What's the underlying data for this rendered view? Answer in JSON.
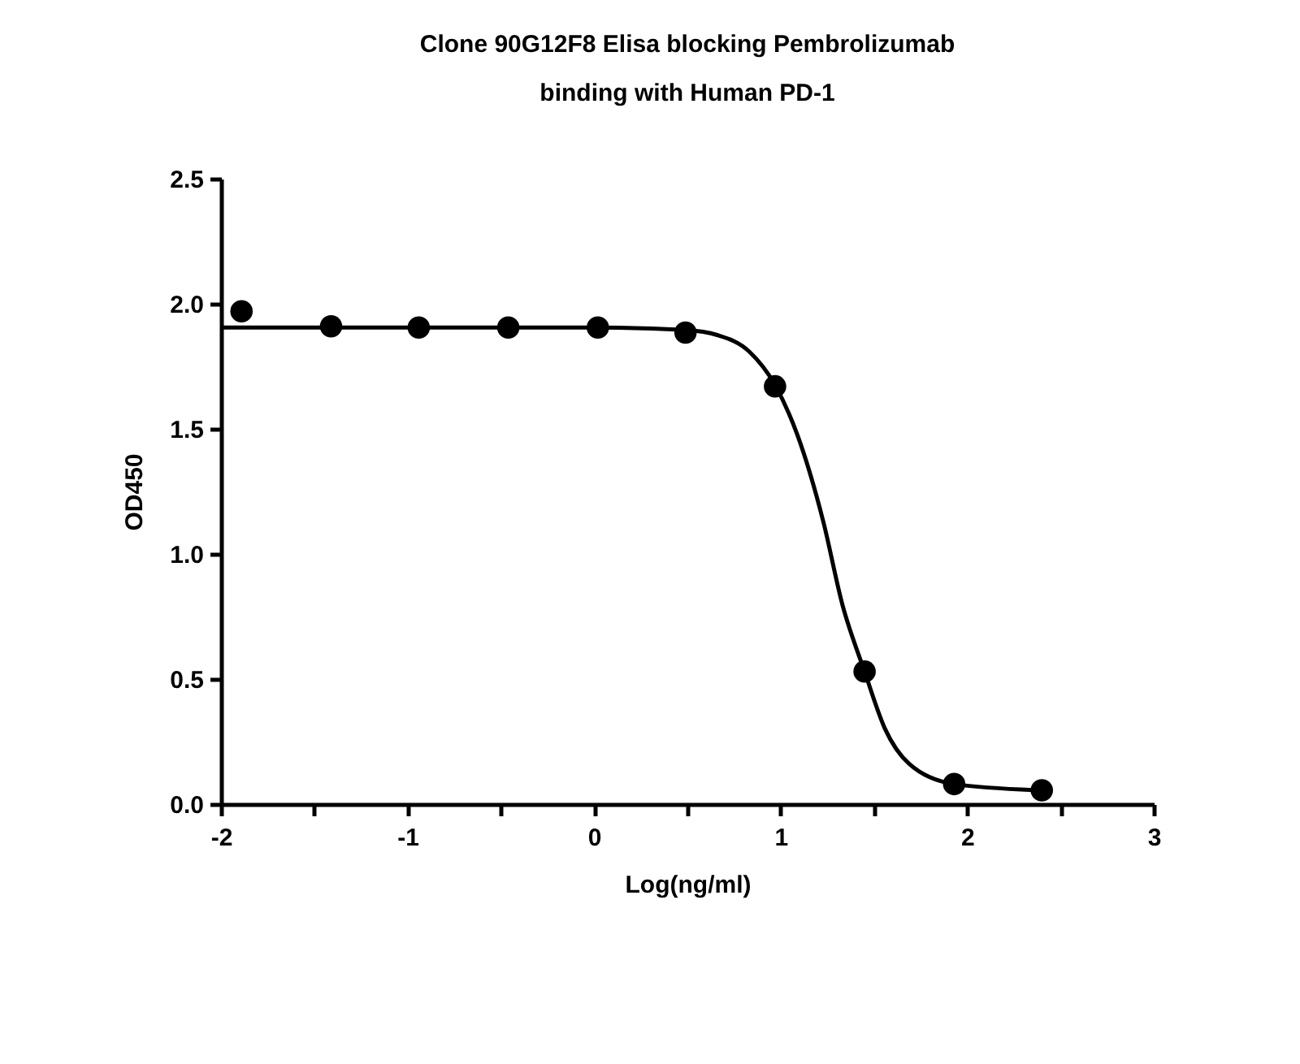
{
  "chart_data": {
    "type": "scatter",
    "title": [
      "Clone 90G12F8 Elisa blocking Pembrolizumab",
      "binding with Human PD-1"
    ],
    "xlabel": "Log(ng/ml)",
    "ylabel": "OD450",
    "xlim": [
      -2,
      3
    ],
    "ylim": [
      0,
      2.5
    ],
    "xticks": [
      -2,
      {
        "value": -1.5,
        "label": null
      },
      -1,
      {
        "value": -0.5,
        "label": null
      },
      0,
      {
        "value": 0.5,
        "label": null
      },
      1,
      {
        "value": 1.5,
        "label": null
      },
      2,
      {
        "value": 2.5,
        "label": null
      },
      3
    ],
    "yticks": [
      {
        "value": 0,
        "label": "0.0"
      },
      0.5,
      {
        "value": 1,
        "label": "1.0"
      },
      1.5,
      {
        "value": 2,
        "label": "2.0"
      },
      2.5
    ],
    "grid": false,
    "series": [
      {
        "marker": "circle",
        "color": "#000000",
        "x": [
          -1.89,
          -1.41,
          -0.94,
          -0.46,
          0.02,
          0.49,
          0.97,
          1.45,
          1.93,
          2.4
        ],
        "values": [
          1.97,
          1.91,
          1.905,
          1.905,
          1.905,
          1.885,
          1.67,
          0.53,
          0.08,
          0.055
        ]
      },
      {
        "type": "line",
        "color": "#000000",
        "line_style": "solid",
        "x": [
          -2,
          0.02,
          0.49,
          0.66,
          0.83,
          0.97,
          1.09,
          1.23,
          1.33,
          1.45,
          1.56,
          1.69,
          1.93,
          2.4
        ],
        "values": [
          1.905,
          1.905,
          1.895,
          1.875,
          1.81,
          1.675,
          1.475,
          1.125,
          0.8,
          0.53,
          0.3,
          0.16,
          0.08,
          0.055
        ]
      }
    ]
  }
}
